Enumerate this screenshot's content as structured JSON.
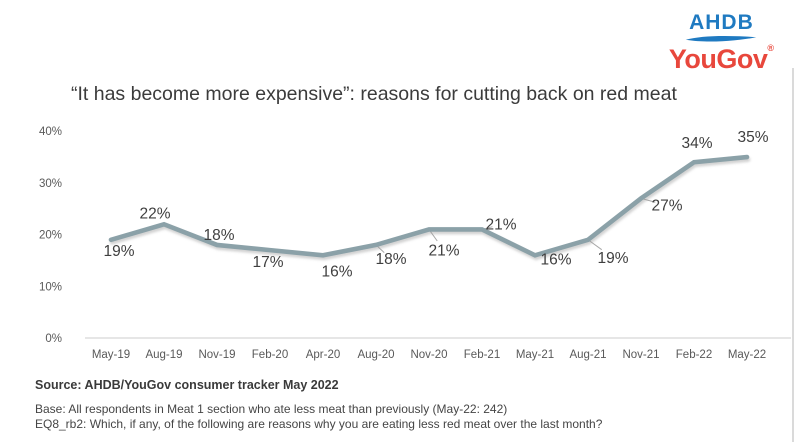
{
  "logo": {
    "ahdb": "AHDB",
    "yougov": "YouGov",
    "reg": "®",
    "ahdb_color": "#1f7ac1",
    "yougov_color": "#e8473c"
  },
  "chart_data": {
    "type": "line",
    "title": "“It has become more expensive”: reasons for cutting back on red meat",
    "categories": [
      "May-19",
      "Aug-19",
      "Nov-19",
      "Feb-20",
      "Apr-20",
      "Aug-20",
      "Nov-20",
      "Feb-21",
      "May-21",
      "Aug-21",
      "Nov-21",
      "Feb-22",
      "May-22"
    ],
    "values": [
      19,
      22,
      18,
      17,
      16,
      18,
      21,
      21,
      16,
      19,
      27,
      34,
      35
    ],
    "unit": "%",
    "ylim": [
      0,
      40
    ],
    "ytick_step": 10,
    "grid": false,
    "legend": "none",
    "line_color": "#8ba1a8",
    "axis_color": "#d6d6d6",
    "tick_color": "#595959",
    "data_label_color": "#3f3f3f",
    "leader_color": "#a8a8a8"
  },
  "footer": {
    "source": "Source: AHDB/YouGov consumer tracker May 2022",
    "base": "Base: All respondents in Meat 1 section who ate less meat than previously (May-22: 242)",
    "question": "EQ8_rb2: Which, if any, of the following are reasons why you are eating less red meat over the last month?"
  }
}
